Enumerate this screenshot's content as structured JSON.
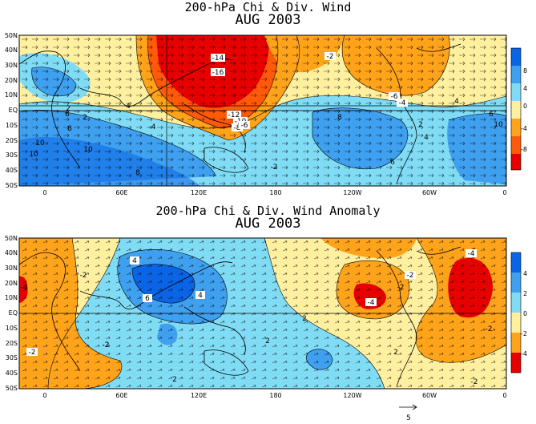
{
  "panels": [
    {
      "title": "200-hPa Chi & Div. Wind",
      "subtitle": "AUG 2003",
      "lat_labels": [
        "50N",
        "40N",
        "30N",
        "20N",
        "10N",
        "EQ",
        "10S",
        "20S",
        "30S",
        "40S",
        "50S"
      ],
      "lon_labels": [
        "0",
        "60E",
        "120E",
        "180",
        "120W",
        "60W",
        "0"
      ],
      "colorbar_labels": [
        "8",
        "4",
        "0",
        "-4",
        "-8"
      ],
      "colorbar_colors": [
        "#0a64e6",
        "#3fa0f0",
        "#80dcf5",
        "#fff0a0",
        "#ffa31a",
        "#ff5a0a",
        "#e60000"
      ],
      "contour_labels": [
        "-14",
        "-16",
        "-12",
        "-10",
        "-8",
        "-6",
        "-4",
        "-2",
        "-6",
        "-4",
        "2",
        "4",
        "6",
        "8",
        "10",
        "10",
        "8",
        "6",
        "4",
        "2",
        "-2",
        "8",
        "10",
        "6",
        "4",
        "2",
        "10"
      ]
    },
    {
      "title": "200-hPa Chi & Div. Wind Anomaly",
      "subtitle": "AUG 2003",
      "lat_labels": [
        "50N",
        "40N",
        "30N",
        "20N",
        "10N",
        "EQ",
        "10S",
        "20S",
        "30S",
        "40S",
        "50S"
      ],
      "lon_labels": [
        "0",
        "60E",
        "120E",
        "180",
        "120W",
        "60W",
        "0"
      ],
      "colorbar_labels": [
        "4",
        "2",
        "0",
        "-2",
        "-4"
      ],
      "colorbar_colors": [
        "#0a64e6",
        "#3fa0f0",
        "#80dcf5",
        "#fff0a0",
        "#ffa31a",
        "#e60000"
      ],
      "contour_labels": [
        "4",
        "6",
        "4",
        "2",
        "2",
        "2",
        "-2",
        "-2",
        "-2",
        "-2",
        "2",
        "-2",
        "-4",
        "-2",
        "-2",
        "-4",
        "-2",
        "-2",
        "-4"
      ]
    }
  ],
  "reference_vector_label": "5"
}
